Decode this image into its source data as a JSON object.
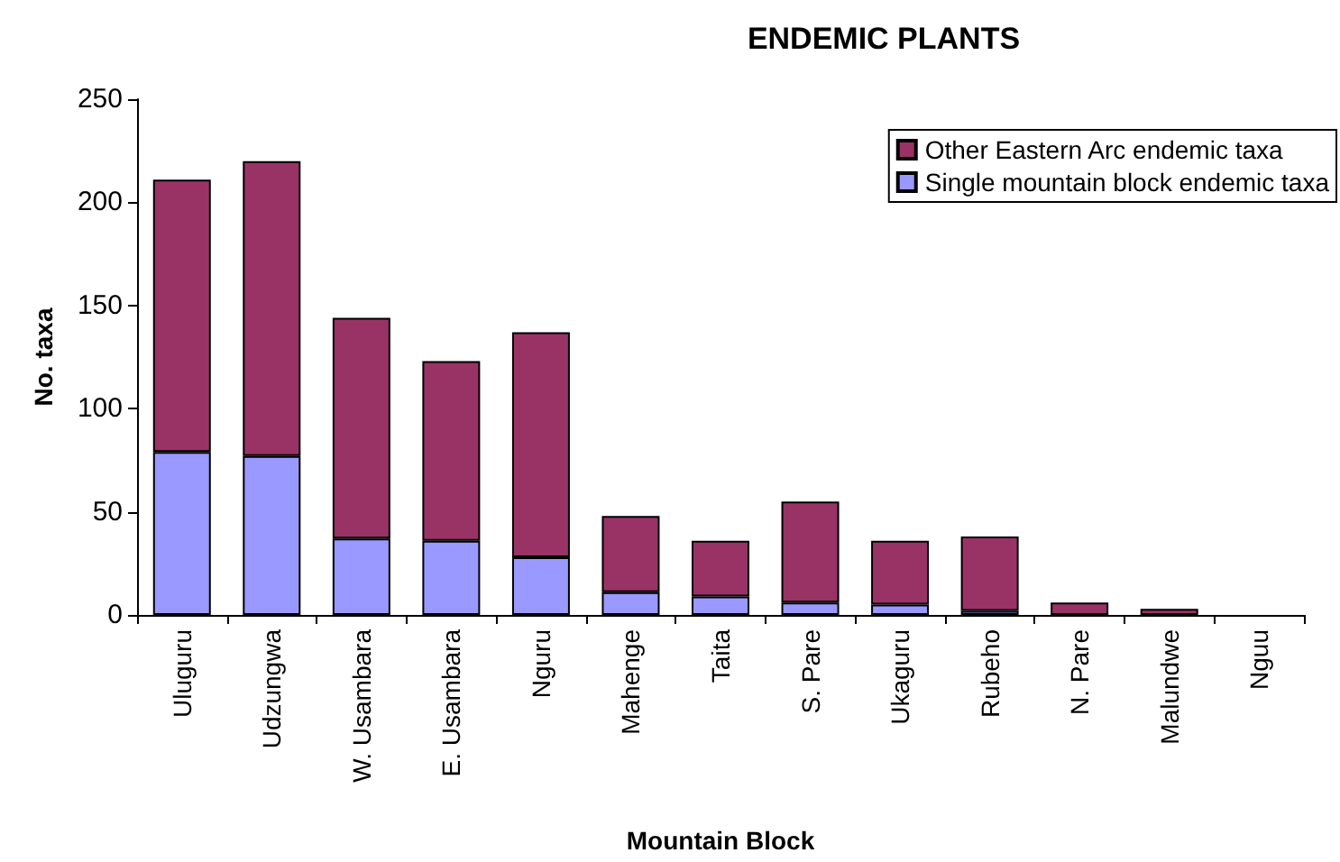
{
  "chart_data": {
    "type": "bar",
    "title": "ENDEMIC PLANTS",
    "xlabel": "Mountain Block",
    "ylabel": "No. taxa",
    "categories": [
      "Uluguru",
      "Udzungwa",
      "W. Usambara",
      "E. Usambara",
      "Nguru",
      "Mahenge",
      "Taita",
      "S. Pare",
      "Ukaguru",
      "Rubeho",
      "N. Pare",
      "Malundwe",
      "Nguu"
    ],
    "series": [
      {
        "name": "Single mountain block endemic taxa",
        "color": "#9999ff",
        "values": [
          79,
          77,
          37,
          36,
          28,
          11,
          9,
          6,
          5,
          2,
          0,
          0,
          0
        ]
      },
      {
        "name": "Other Eastern Arc endemic taxa",
        "color": "#993366",
        "values": [
          132,
          143,
          107,
          87,
          109,
          37,
          27,
          49,
          31,
          36,
          6,
          3,
          0
        ]
      }
    ],
    "stacked": true,
    "ylim": [
      0,
      250
    ],
    "yticks": [
      0,
      50,
      100,
      150,
      200,
      250
    ],
    "grid": false,
    "legend": "top right"
  }
}
